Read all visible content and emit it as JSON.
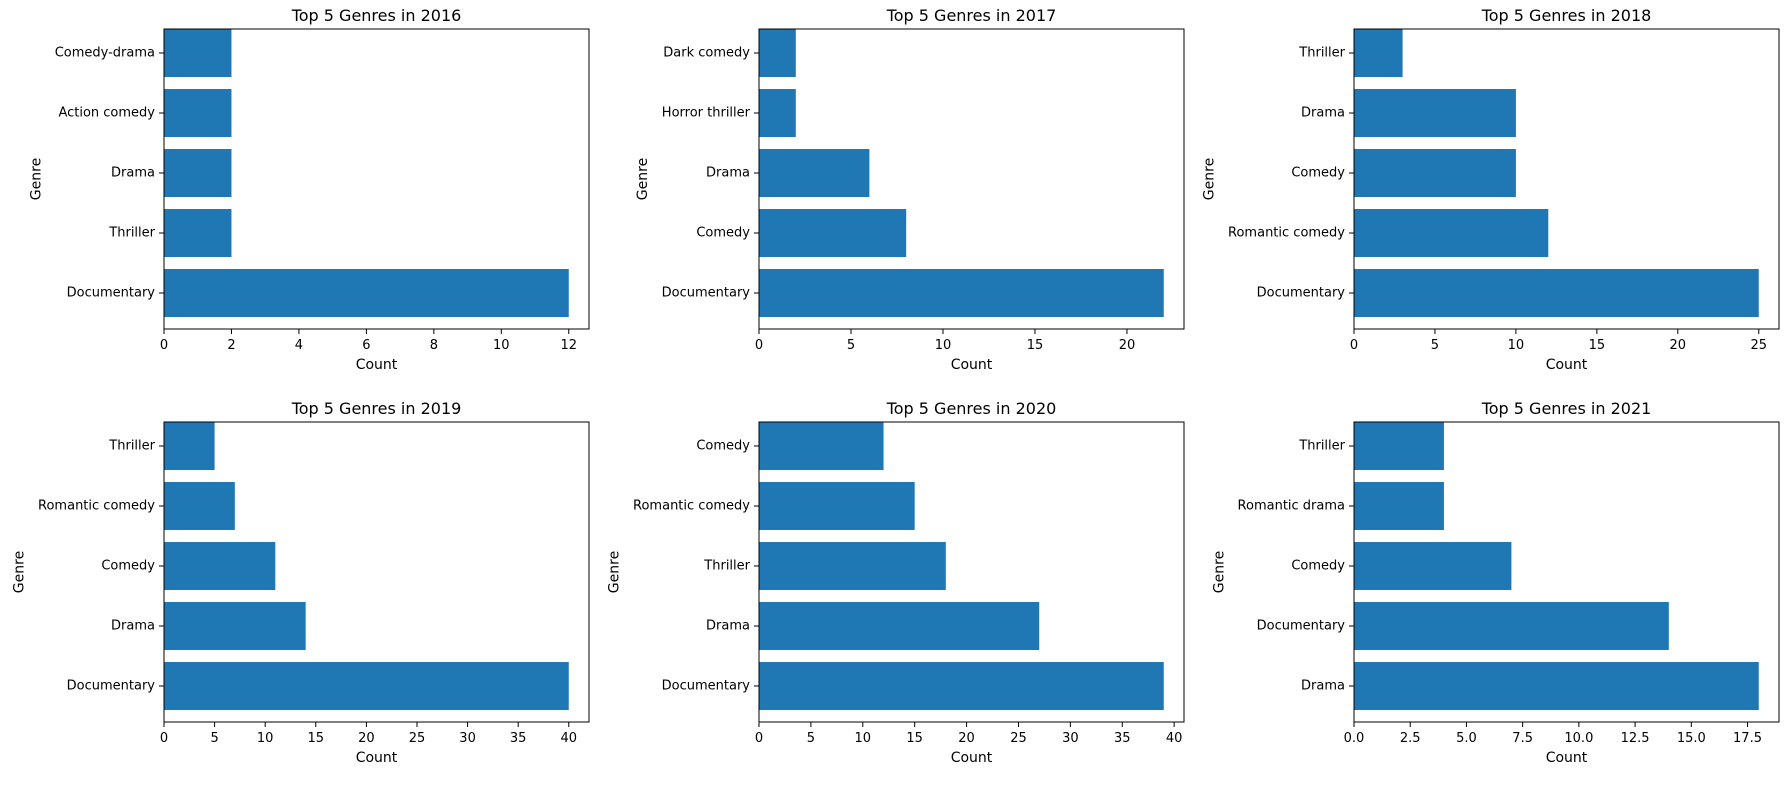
{
  "chart_data": [
    {
      "type": "bar",
      "orientation": "horizontal",
      "title": "Top 5 Genres in 2016",
      "xlabel": "Count",
      "ylabel": "Genre",
      "categories": [
        "Documentary",
        "Thriller",
        "Drama",
        "Action comedy",
        "Comedy-drama"
      ],
      "values": [
        12,
        2,
        2,
        2,
        2
      ],
      "xlim": [
        0,
        12.6
      ],
      "xticks": [
        0,
        2,
        4,
        6,
        8,
        10,
        12
      ],
      "xtick_labels": [
        "0",
        "2",
        "4",
        "6",
        "8",
        "10",
        "12"
      ],
      "grid": false
    },
    {
      "type": "bar",
      "orientation": "horizontal",
      "title": "Top 5 Genres in 2017",
      "xlabel": "Count",
      "ylabel": "Genre",
      "categories": [
        "Documentary",
        "Comedy",
        "Drama",
        "Horror thriller",
        "Dark comedy"
      ],
      "values": [
        22,
        8,
        6,
        2,
        2
      ],
      "xlim": [
        0,
        23.1
      ],
      "xticks": [
        0,
        5,
        10,
        15,
        20
      ],
      "xtick_labels": [
        "0",
        "5",
        "10",
        "15",
        "20"
      ],
      "grid": false
    },
    {
      "type": "bar",
      "orientation": "horizontal",
      "title": "Top 5 Genres in 2018",
      "xlabel": "Count",
      "ylabel": "Genre",
      "categories": [
        "Documentary",
        "Romantic comedy",
        "Comedy",
        "Drama",
        "Thriller"
      ],
      "values": [
        25,
        12,
        10,
        10,
        3
      ],
      "xlim": [
        0,
        26.25
      ],
      "xticks": [
        0,
        5,
        10,
        15,
        20,
        25
      ],
      "xtick_labels": [
        "0",
        "5",
        "10",
        "15",
        "20",
        "25"
      ],
      "grid": false
    },
    {
      "type": "bar",
      "orientation": "horizontal",
      "title": "Top 5 Genres in 2019",
      "xlabel": "Count",
      "ylabel": "Genre",
      "categories": [
        "Documentary",
        "Drama",
        "Comedy",
        "Romantic comedy",
        "Thriller"
      ],
      "values": [
        40,
        14,
        11,
        7,
        5
      ],
      "xlim": [
        0,
        42
      ],
      "xticks": [
        0,
        5,
        10,
        15,
        20,
        25,
        30,
        35,
        40
      ],
      "xtick_labels": [
        "0",
        "5",
        "10",
        "15",
        "20",
        "25",
        "30",
        "35",
        "40"
      ],
      "grid": false
    },
    {
      "type": "bar",
      "orientation": "horizontal",
      "title": "Top 5 Genres in 2020",
      "xlabel": "Count",
      "ylabel": "Genre",
      "categories": [
        "Documentary",
        "Drama",
        "Thriller",
        "Romantic comedy",
        "Comedy"
      ],
      "values": [
        39,
        27,
        18,
        15,
        12
      ],
      "xlim": [
        0,
        40.95
      ],
      "xticks": [
        0,
        5,
        10,
        15,
        20,
        25,
        30,
        35,
        40
      ],
      "xtick_labels": [
        "0",
        "5",
        "10",
        "15",
        "20",
        "25",
        "30",
        "35",
        "40"
      ],
      "grid": false
    },
    {
      "type": "bar",
      "orientation": "horizontal",
      "title": "Top 5 Genres in 2021",
      "xlabel": "Count",
      "ylabel": "Genre",
      "categories": [
        "Drama",
        "Documentary",
        "Comedy",
        "Romantic drama",
        "Thriller"
      ],
      "values": [
        18,
        14,
        7,
        4,
        4
      ],
      "xlim": [
        0,
        18.9
      ],
      "xticks": [
        0,
        2.5,
        5,
        7.5,
        10,
        12.5,
        15,
        17.5
      ],
      "xtick_labels": [
        "0.0",
        "2.5",
        "5.0",
        "7.5",
        "10.0",
        "12.5",
        "15.0",
        "17.5"
      ],
      "grid": false
    }
  ],
  "colors": {
    "bar": "#1f77b4",
    "axis": "#000000",
    "background": "#ffffff"
  }
}
